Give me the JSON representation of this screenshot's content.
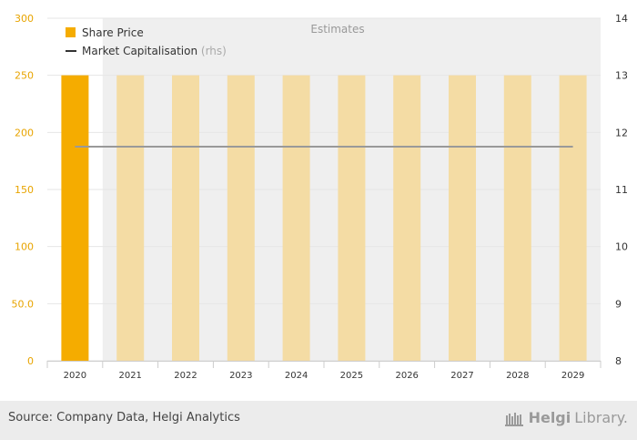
{
  "chart_data": {
    "type": "bar",
    "categories": [
      "2020",
      "2021",
      "2022",
      "2023",
      "2024",
      "2025",
      "2026",
      "2027",
      "2028",
      "2029"
    ],
    "series": [
      {
        "name": "Share Price",
        "type": "bar",
        "axis": "left",
        "values": [
          250,
          250,
          250,
          250,
          250,
          250,
          250,
          250,
          250,
          250
        ]
      },
      {
        "name": "Market Capitalisation",
        "type": "line",
        "axis": "right",
        "values": [
          11.75,
          11.75,
          11.75,
          11.75,
          11.75,
          11.75,
          11.75,
          11.75,
          11.75,
          11.75
        ]
      }
    ],
    "series_suffix": {
      "market_cap": "(rhs)"
    },
    "left_axis": {
      "ylim": [
        0,
        300
      ],
      "ticks": [
        "0",
        "50.0",
        "100",
        "150",
        "200",
        "250",
        "300"
      ]
    },
    "right_axis": {
      "ylim": [
        8,
        14
      ],
      "ticks": [
        "8",
        "9",
        "10",
        "11",
        "12",
        "13",
        "14"
      ]
    },
    "estimates_label": "Estimates",
    "estimates_start_index": 1,
    "legend_position": "top-left",
    "grid": true,
    "colors": {
      "actual_bar": "#f5ac00",
      "estimate_bar": "#f4dca4",
      "line": "#999999",
      "estimates_bg": "#efefef"
    }
  },
  "footer": {
    "source": "Source: Company Data, Helgi Analytics",
    "brand_main": "Helgi",
    "brand_sub": "Library."
  }
}
